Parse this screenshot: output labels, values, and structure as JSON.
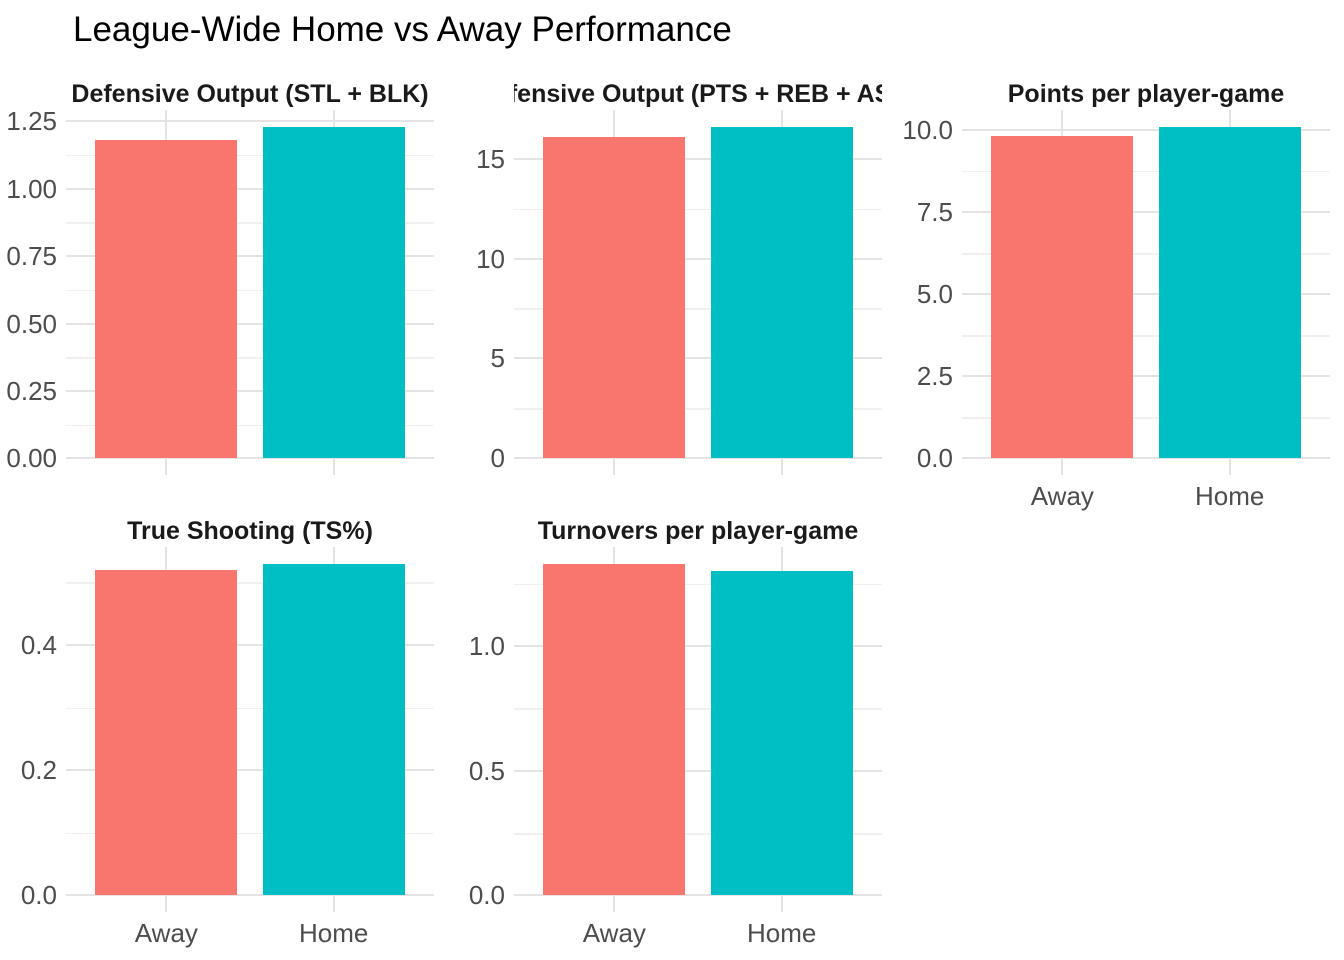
{
  "page_title": "League-Wide Home vs Away Performance",
  "colors": {
    "away_bar": "#F8766D",
    "home_bar": "#00BFC4",
    "grid_major": "#E4E4E4",
    "grid_minor": "#F0F0F0",
    "axis_text": "#4D4D4D",
    "strip_text": "#1A1A1A",
    "title_text": "#000000",
    "background": "#FFFFFF"
  },
  "chart_data": {
    "type": "bar",
    "title": "League-Wide Home vs Away Performance",
    "categories": [
      "Away",
      "Home"
    ],
    "series_colors": {
      "Away": "#F8766D",
      "Home": "#00BFC4"
    },
    "legend": "none",
    "grid": true,
    "facets": [
      {
        "title": "Defensive Output (STL + BLK)",
        "values": [
          1.18,
          1.23
        ],
        "yticks": [
          0,
          0.25,
          0.5,
          0.75,
          1.0,
          1.25
        ],
        "ytick_labels": [
          "0.00",
          "0.25",
          "0.50",
          "0.75",
          "1.00",
          "1.25"
        ],
        "minor_ticks": [
          0.125,
          0.375,
          0.625,
          0.875,
          1.125
        ],
        "ylim": [
          0,
          1.29
        ],
        "show_x_labels": false
      },
      {
        "title": "Offensive Output (PTS + REB + AST)",
        "values": [
          16.1,
          16.6
        ],
        "yticks": [
          0,
          5,
          10,
          15
        ],
        "ytick_labels": [
          "0",
          "5",
          "10",
          "15"
        ],
        "minor_ticks": [
          2.5,
          7.5,
          12.5
        ],
        "ylim": [
          0,
          17.4
        ],
        "show_x_labels": false
      },
      {
        "title": "Points per player-game",
        "values": [
          9.8,
          10.1
        ],
        "yticks": [
          0,
          2.5,
          5,
          7.5,
          10
        ],
        "ytick_labels": [
          "0.0",
          "2.5",
          "5.0",
          "7.5",
          "10.0"
        ],
        "minor_ticks": [
          1.25,
          3.75,
          6.25,
          8.75
        ],
        "ylim": [
          0,
          10.6
        ],
        "show_x_labels": true
      },
      {
        "title": "True Shooting (TS%)",
        "values": [
          0.52,
          0.53
        ],
        "yticks": [
          0,
          0.2,
          0.4
        ],
        "ytick_labels": [
          "0.0",
          "0.2",
          "0.4"
        ],
        "minor_ticks": [
          0.1,
          0.3,
          0.5
        ],
        "ylim": [
          0,
          0.56
        ],
        "show_x_labels": true
      },
      {
        "title": "Turnovers per player-game",
        "values": [
          1.33,
          1.3
        ],
        "yticks": [
          0,
          0.5,
          1.0
        ],
        "ytick_labels": [
          "0.0",
          "0.5",
          "1.0"
        ],
        "minor_ticks": [
          0.25,
          0.75,
          1.25
        ],
        "ylim": [
          0,
          1.4
        ],
        "show_x_labels": true
      }
    ]
  }
}
